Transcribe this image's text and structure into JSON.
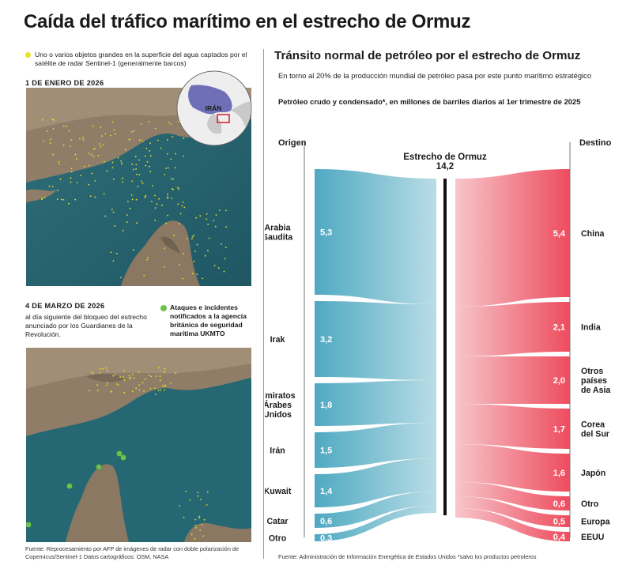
{
  "title": "Caída del tráfico marítimo en el estrecho de Ormuz",
  "maps": {
    "legend_text": "Uno o varios objetos grandes en la superficie del agua captados por el satélite de radar Sentinel-1 (generalmente barcos)",
    "legend_dot_color": "#e8e22a",
    "map1_date": "1 DE ENERO DE 2026",
    "inset_label": "IRÁN",
    "map2_date": "4 DE MARZO DE 2026",
    "map2_description": "al día siguiente del bloqueo del estrecho anunciado por los Guardianes de la Revolución.",
    "attack_legend": "Ataques e incidentes notificados a la agencia británica de seguridad marítima UKMTO",
    "attack_dot_color": "#6fc14f",
    "source": "Fuente: Reprocesamiento por AFP de imágenes de radar con doble polarización de Copernicus/Sentinel-1          Datos cartográficos: OSM, NASA"
  },
  "chart": {
    "title": "Tránsito normal de petróleo por el estrecho de Ormuz",
    "subtitle": "En torno al 20% de la producción mundial de petróleo pasa por este punto marítimo estratégico",
    "unit_text": "Petróleo crudo y condensado*, en millones de barriles diarios al 1er trimestre de 2025",
    "origin_header": "Origen",
    "destination_header": "Destino",
    "center_label": "Estrecho de Ormuz",
    "center_value": "14,2",
    "source": "Fuente: Administración de Información Energética de Estados Unidos     *salvo los productos petroleros"
  },
  "chart_data": {
    "type": "sankey",
    "title": "Tránsito normal de petróleo por el estrecho de Ormuz",
    "unit": "millones de barriles diarios",
    "center": {
      "name": "Estrecho de Ormuz",
      "value": 14.2
    },
    "origins": [
      {
        "name": "Arabia Saudita",
        "value": 5.3
      },
      {
        "name": "Irak",
        "value": 3.2
      },
      {
        "name": "Emiratos Árabes Unidos",
        "value": 1.8
      },
      {
        "name": "Irán",
        "value": 1.5
      },
      {
        "name": "Kuwait",
        "value": 1.4
      },
      {
        "name": "Catar",
        "value": 0.6
      },
      {
        "name": "Otro",
        "value": 0.3
      }
    ],
    "destinations": [
      {
        "name": "China",
        "value": 5.4
      },
      {
        "name": "India",
        "value": 2.1
      },
      {
        "name": "Otros países de Asia",
        "value": 2.0
      },
      {
        "name": "Corea del Sur",
        "value": 1.7
      },
      {
        "name": "Japón",
        "value": 1.6
      },
      {
        "name": "Otro",
        "value": 0.6
      },
      {
        "name": "Europa",
        "value": 0.5
      },
      {
        "name": "EEUU",
        "value": 0.4
      }
    ],
    "origin_labels": [
      [
        "Arabia",
        "Saudita"
      ],
      [
        "Irak"
      ],
      [
        "Emiratos",
        "Árabes",
        "Unidos"
      ],
      [
        "Irán"
      ],
      [
        "Kuwait"
      ],
      [
        "Catar"
      ],
      [
        "Otro"
      ]
    ],
    "destination_labels": [
      [
        "China"
      ],
      [
        "India"
      ],
      [
        "Otros",
        "países",
        "de Asia"
      ],
      [
        "Corea",
        "del Sur"
      ],
      [
        "Japón"
      ],
      [
        "Otro"
      ],
      [
        "Europa"
      ],
      [
        "EEUU"
      ]
    ],
    "value_labels_origin": [
      "5,3",
      "3,2",
      "1,8",
      "1,5",
      "1,4",
      "0,6",
      "0,3"
    ],
    "value_labels_destination": [
      "5,4",
      "2,1",
      "2,0",
      "1,7",
      "1,6",
      "0,6",
      "0,5",
      "0,4"
    ],
    "colors": {
      "origin": "#4fa9c2",
      "origin_light": "#b9dde6",
      "destination": "#ee4c5e",
      "destination_light": "#f7c6cb",
      "center_bar": "#111111"
    }
  }
}
